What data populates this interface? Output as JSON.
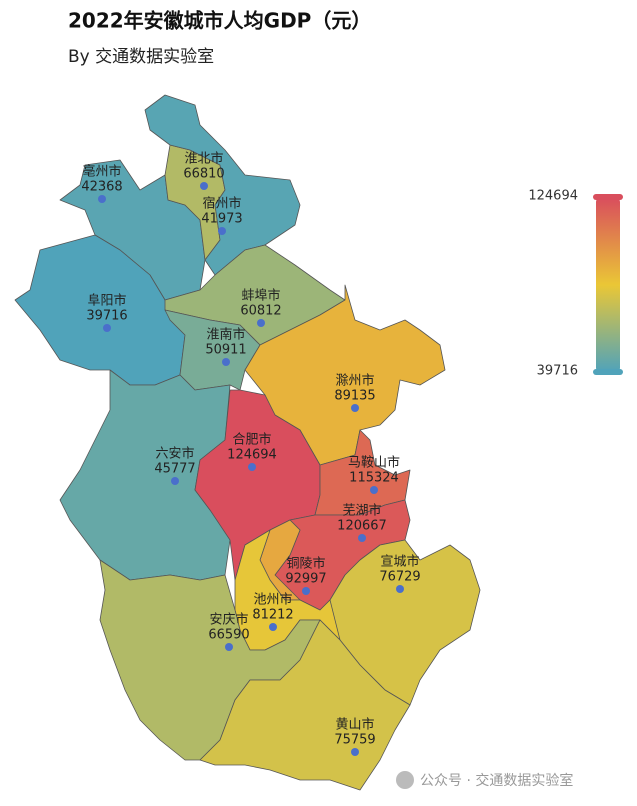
{
  "chart_data": {
    "type": "map",
    "title": "2022年安徽城市人均GDP（元）",
    "subtitle": "By 交通数据实验室",
    "categories": [
      "亳州市",
      "淮北市",
      "宿州市",
      "阜阳市",
      "蚌埠市",
      "淮南市",
      "滁州市",
      "六安市",
      "合肥市",
      "马鞍山市",
      "芜湖市",
      "宣城市",
      "铜陵市",
      "池州市",
      "安庆市",
      "黄山市"
    ],
    "values": [
      42368,
      66810,
      41973,
      39716,
      60812,
      50911,
      89135,
      45777,
      124694,
      115324,
      120667,
      76729,
      92997,
      81212,
      66590,
      75759
    ],
    "range": [
      39716,
      124694
    ],
    "colors": [
      "#50a3ba",
      "#eac736",
      "#d94e5d"
    ]
  },
  "watermark": "公众号 · 交通数据实验室"
}
